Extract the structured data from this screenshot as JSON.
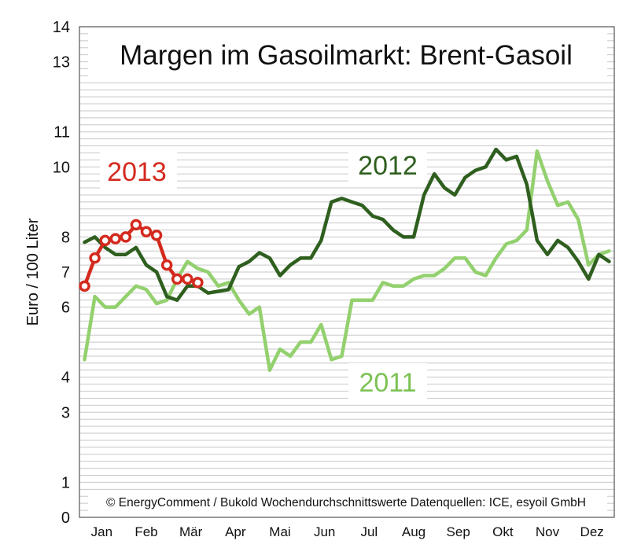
{
  "chart_data": {
    "type": "line",
    "title": "Margen im Gasoilmarkt: Brent-Gasoil",
    "ylabel": "Euro / 100 Liter",
    "xlabel": "",
    "credit": "© EnergyComment / Bukold Wochendurchschnittswerte Datenquellen: ICE, esyoil GmbH",
    "yticks": [
      0,
      1,
      3,
      4,
      6,
      7,
      8,
      10,
      11,
      13,
      14
    ],
    "ylim": [
      0,
      14
    ],
    "months": [
      "Jan",
      "Feb",
      "Mär",
      "Apr",
      "Mai",
      "Jun",
      "Jul",
      "Aug",
      "Sep",
      "Okt",
      "Nov",
      "Dez"
    ],
    "xlim": [
      0.5,
      52.5
    ],
    "grid": true,
    "legend": "inline labels",
    "series": [
      {
        "name": "2011",
        "color": "#93d06e",
        "marker": false,
        "x": [
          1,
          2,
          3,
          4,
          5,
          6,
          7,
          8,
          9,
          10,
          11,
          12,
          13,
          14,
          15,
          16,
          17,
          18,
          19,
          20,
          21,
          22,
          23,
          24,
          25,
          26,
          27,
          28,
          29,
          30,
          31,
          32,
          33,
          34,
          35,
          36,
          37,
          38,
          39,
          40,
          41,
          42,
          43,
          44,
          45,
          46,
          47,
          48,
          49,
          50,
          51,
          52
        ],
        "values": [
          4.5,
          6.3,
          6.0,
          6.0,
          6.3,
          6.6,
          6.5,
          6.1,
          6.2,
          6.8,
          7.3,
          7.1,
          7.0,
          6.6,
          6.7,
          6.2,
          5.8,
          6.0,
          4.2,
          4.8,
          4.6,
          5.0,
          5.0,
          5.5,
          4.5,
          4.6,
          6.2,
          6.2,
          6.2,
          6.7,
          6.6,
          6.6,
          6.8,
          6.9,
          6.9,
          7.1,
          7.4,
          7.4,
          7.0,
          6.9,
          7.4,
          7.8,
          7.9,
          8.2,
          10.45,
          9.6,
          8.9,
          9.0,
          8.5,
          7.2,
          7.5,
          7.6
        ]
      },
      {
        "name": "2012",
        "color": "#2f5f1f",
        "marker": false,
        "x": [
          1,
          2,
          3,
          4,
          5,
          6,
          7,
          8,
          9,
          10,
          11,
          12,
          13,
          14,
          15,
          16,
          17,
          18,
          19,
          20,
          21,
          22,
          23,
          24,
          25,
          26,
          27,
          28,
          29,
          30,
          31,
          32,
          33,
          34,
          35,
          36,
          37,
          38,
          39,
          40,
          41,
          42,
          43,
          44,
          45,
          46,
          47,
          48,
          49,
          50,
          51,
          52
        ],
        "values": [
          7.85,
          8.0,
          7.7,
          7.5,
          7.5,
          7.7,
          7.2,
          7.0,
          6.3,
          6.2,
          6.6,
          6.6,
          6.4,
          6.45,
          6.5,
          7.15,
          7.3,
          7.55,
          7.4,
          6.9,
          7.2,
          7.4,
          7.4,
          7.9,
          9.0,
          9.1,
          9.0,
          8.9,
          8.6,
          8.5,
          8.2,
          8.0,
          8.0,
          9.2,
          9.8,
          9.4,
          9.2,
          9.7,
          9.9,
          10.0,
          10.5,
          10.2,
          10.3,
          9.5,
          7.9,
          7.5,
          7.9,
          7.7,
          7.3,
          6.8,
          7.5,
          7.3
        ]
      },
      {
        "name": "2013",
        "color": "#d42a1e",
        "marker": true,
        "x": [
          1,
          2,
          3,
          4,
          5,
          6,
          7,
          8,
          9,
          10,
          11,
          12
        ],
        "values": [
          6.6,
          7.4,
          7.9,
          7.95,
          8.0,
          8.35,
          8.15,
          8.05,
          7.2,
          6.8,
          6.8,
          6.7
        ]
      }
    ]
  }
}
